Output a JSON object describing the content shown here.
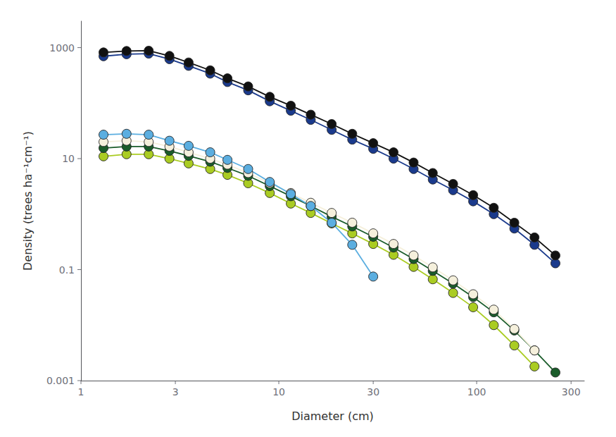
{
  "chart_data": {
    "type": "line",
    "xlabel": "Diameter (cm)",
    "ylabel": "Density (trees ha⁻¹cm⁻¹)",
    "log": true,
    "grid": false,
    "marker": "circle",
    "xlim": [
      1.0,
      350.0
    ],
    "ylim": [
      0.001,
      3000
    ],
    "xticks": [
      1,
      3,
      10,
      30,
      100,
      300
    ],
    "yticks": [
      0.001,
      0.1,
      10,
      1000
    ],
    "series": [
      {
        "color": "#aacc22",
        "x": [
          1.3,
          1.7,
          2.2,
          2.8,
          3.5,
          4.5,
          5.5,
          7.0,
          9.0,
          11.5,
          14.5,
          18.5,
          23.5,
          30.0,
          38.0,
          48.0,
          60.0,
          76.0,
          96.0,
          122.0,
          155.0,
          196.0
        ],
        "values": [
          11,
          12,
          12,
          10,
          8.2,
          6.5,
          5.1,
          3.6,
          2.4,
          1.55,
          1.05,
          0.68,
          0.45,
          0.29,
          0.185,
          0.112,
          0.067,
          0.038,
          0.021,
          0.01,
          0.0043,
          0.0018
        ]
      },
      {
        "color": "#1a5c2a",
        "x": [
          1.3,
          1.7,
          2.2,
          2.8,
          3.5,
          4.5,
          5.5,
          7.0,
          9.0,
          11.5,
          14.5,
          18.5,
          23.5,
          30.0,
          38.0,
          48.0,
          60.0,
          76.0,
          96.0,
          122.0,
          155.0,
          196.0,
          250.0
        ],
        "values": [
          15.5,
          16.5,
          16.5,
          13.8,
          11.2,
          8.8,
          6.8,
          4.9,
          3.2,
          2.1,
          1.4,
          0.9,
          0.6,
          0.39,
          0.25,
          0.155,
          0.095,
          0.056,
          0.032,
          0.017,
          0.008,
          0.0035,
          0.0014
        ]
      },
      {
        "color": "#f5f0dc",
        "x": [
          1.3,
          1.7,
          2.2,
          2.8,
          3.5,
          4.5,
          5.5,
          7.0,
          9.0,
          11.5,
          14.5,
          18.5,
          23.5,
          30.0,
          38.0,
          48.0,
          60.0,
          76.0,
          96.0,
          122.0,
          155.0,
          196.0
        ],
        "values": [
          20,
          21,
          20,
          16.5,
          13,
          10,
          7.8,
          5.5,
          3.6,
          2.4,
          1.6,
          1.05,
          0.7,
          0.45,
          0.29,
          0.18,
          0.11,
          0.064,
          0.036,
          0.019,
          0.0085,
          0.0035
        ]
      },
      {
        "color": "#5baee0",
        "x": [
          1.3,
          1.7,
          2.2,
          2.8,
          3.5,
          4.5,
          5.5,
          7.0,
          9.0,
          11.5,
          14.5,
          18.5,
          23.5,
          30.0
        ],
        "values": [
          27,
          28,
          27,
          21,
          17,
          13,
          9.5,
          6.5,
          3.8,
          2.3,
          1.4,
          0.7,
          0.28,
          0.075
        ]
      },
      {
        "color": "#1a3a8c",
        "x": [
          1.3,
          1.7,
          2.2,
          2.8,
          3.5,
          4.5,
          5.5,
          7.0,
          9.0,
          11.5,
          14.5,
          18.5,
          23.5,
          30.0,
          38.0,
          48.0,
          60.0,
          76.0,
          96.0,
          122.0,
          155.0,
          196.0,
          250.0
        ],
        "values": [
          700,
          760,
          780,
          620,
          470,
          340,
          240,
          170,
          108,
          73,
          50,
          33,
          22,
          15,
          10,
          6.5,
          4.2,
          2.7,
          1.7,
          1.0,
          0.55,
          0.28,
          0.13
        ]
      },
      {
        "color": "#111111",
        "x": [
          1.3,
          1.7,
          2.2,
          2.8,
          3.5,
          4.5,
          5.5,
          7.0,
          9.0,
          11.5,
          14.5,
          18.5,
          23.5,
          30.0,
          38.0,
          48.0,
          60.0,
          76.0,
          96.0,
          122.0,
          155.0,
          196.0,
          250.0
        ],
        "values": [
          820,
          870,
          880,
          710,
          540,
          390,
          280,
          200,
          130,
          90,
          62,
          42,
          28,
          19,
          13,
          8.5,
          5.5,
          3.5,
          2.2,
          1.3,
          0.7,
          0.38,
          0.18
        ]
      }
    ]
  }
}
